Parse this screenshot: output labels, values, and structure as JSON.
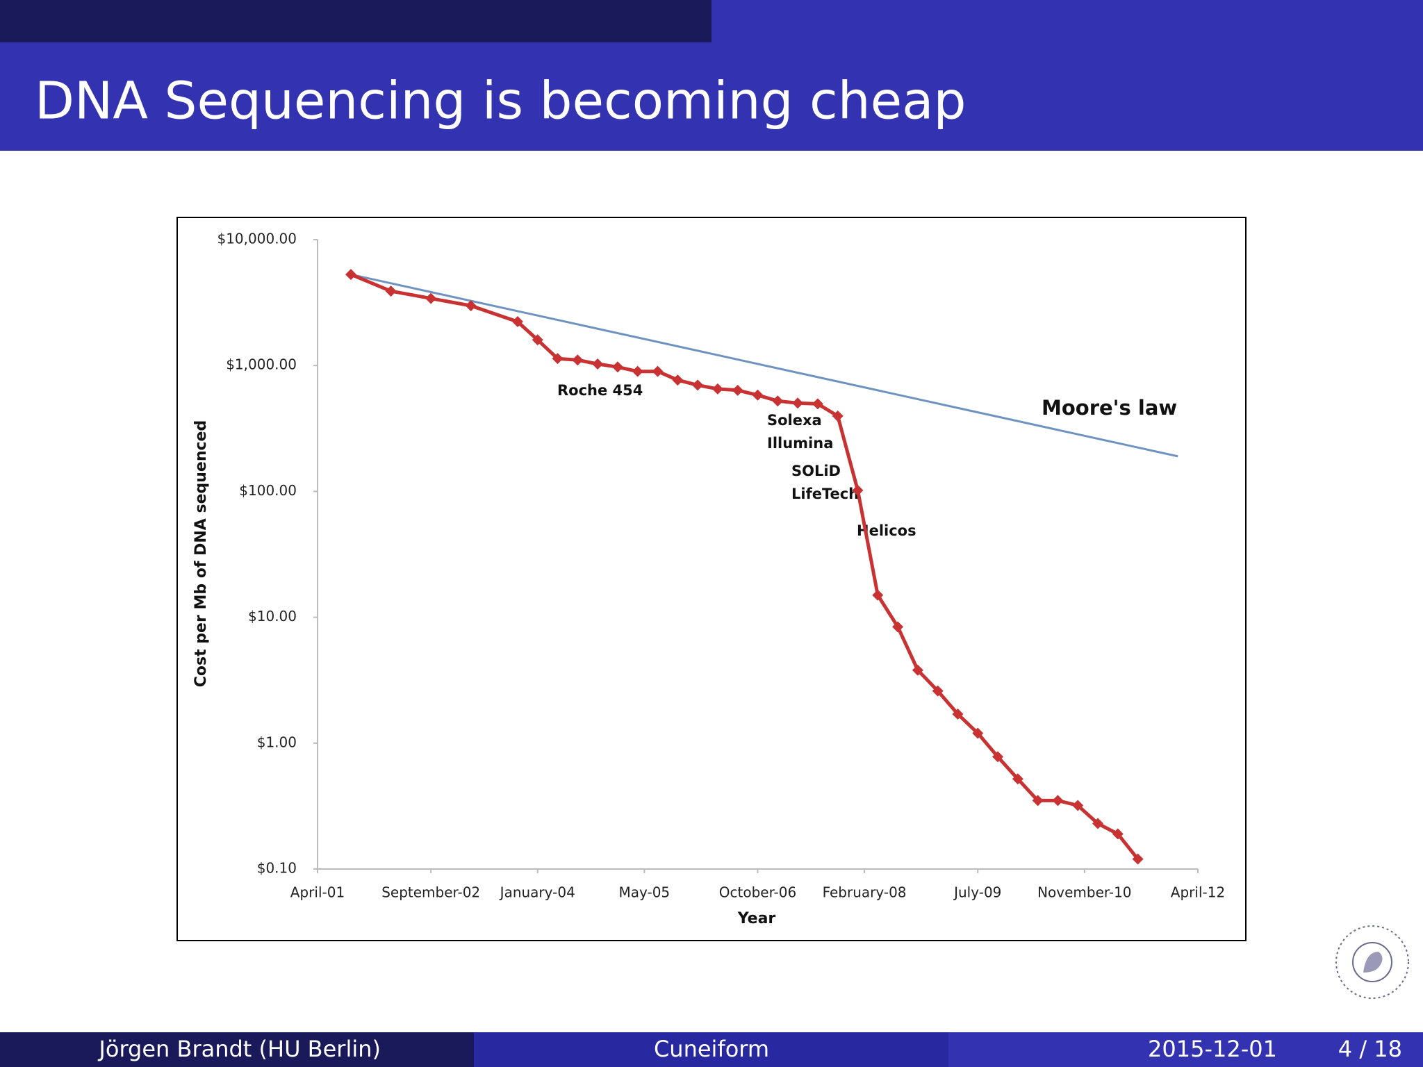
{
  "slide": {
    "title": "DNA Sequencing is becoming cheap",
    "footer": {
      "author": "Jörgen Brandt  (HU Berlin)",
      "topic": "Cuneiform",
      "date": "2015-12-01",
      "page": "4 / 18"
    }
  },
  "chart_data": {
    "type": "line",
    "log_y": true,
    "grid": false,
    "x_label": "Year",
    "y_label": "Cost per Mb of DNA sequenced",
    "xlim": [
      "2001-04",
      "2012-04"
    ],
    "xticks": [
      {
        "value": "2001-04",
        "label": "April-01"
      },
      {
        "value": "2002-09",
        "label": "September-02"
      },
      {
        "value": "2004-01",
        "label": "January-04"
      },
      {
        "value": "2005-05",
        "label": "May-05"
      },
      {
        "value": "2006-10",
        "label": "October-06"
      },
      {
        "value": "2008-02",
        "label": "February-08"
      },
      {
        "value": "2009-07",
        "label": "July-09"
      },
      {
        "value": "2010-11",
        "label": "November-10"
      },
      {
        "value": "2012-04",
        "label": "April-12"
      }
    ],
    "ylim": [
      0.1,
      10000
    ],
    "yticks": [
      {
        "value": 0.1,
        "label": "$0.10"
      },
      {
        "value": 1,
        "label": "$1.00"
      },
      {
        "value": 10,
        "label": "$10.00"
      },
      {
        "value": 100,
        "label": "$100.00"
      },
      {
        "value": 1000,
        "label": "$1,000.00"
      },
      {
        "value": 10000,
        "label": "$10,000.00"
      }
    ],
    "series": [
      {
        "color": "#c83232",
        "markers": true,
        "x": [
          "2001-09",
          "2002-03",
          "2002-09",
          "2003-03",
          "2003-10",
          "2004-01",
          "2004-04",
          "2004-07",
          "2004-10",
          "2005-01",
          "2005-04",
          "2005-07",
          "2005-10",
          "2006-01",
          "2006-04",
          "2006-07",
          "2006-10",
          "2007-01",
          "2007-04",
          "2007-07",
          "2007-10",
          "2008-01",
          "2008-04",
          "2008-07",
          "2008-10",
          "2009-01",
          "2009-04",
          "2009-07",
          "2009-10",
          "2010-01",
          "2010-04",
          "2010-07",
          "2010-10",
          "2011-01",
          "2011-04",
          "2011-07"
        ],
        "values": [
          5292,
          3899,
          3414,
          2986,
          2231,
          1599,
          1136,
          1107,
          1029,
          974,
          898,
          899,
          767,
          699,
          652,
          636,
          582,
          523,
          503,
          496,
          397,
          102,
          15,
          8.4,
          3.8,
          2.6,
          1.7,
          1.2,
          0.78,
          0.52,
          0.35,
          0.35,
          0.32,
          0.23,
          0.19,
          0.12
        ]
      },
      {
        "name": "Moore's law",
        "color": "#6f93c0",
        "markers": false,
        "x": [
          "2001-09",
          "2012-01"
        ],
        "values": [
          5292,
          190
        ]
      }
    ],
    "annotations": [
      "Roche 454",
      "Solexa",
      "Illumina",
      "SOLiD",
      "LifeTech",
      "Helicos"
    ]
  }
}
